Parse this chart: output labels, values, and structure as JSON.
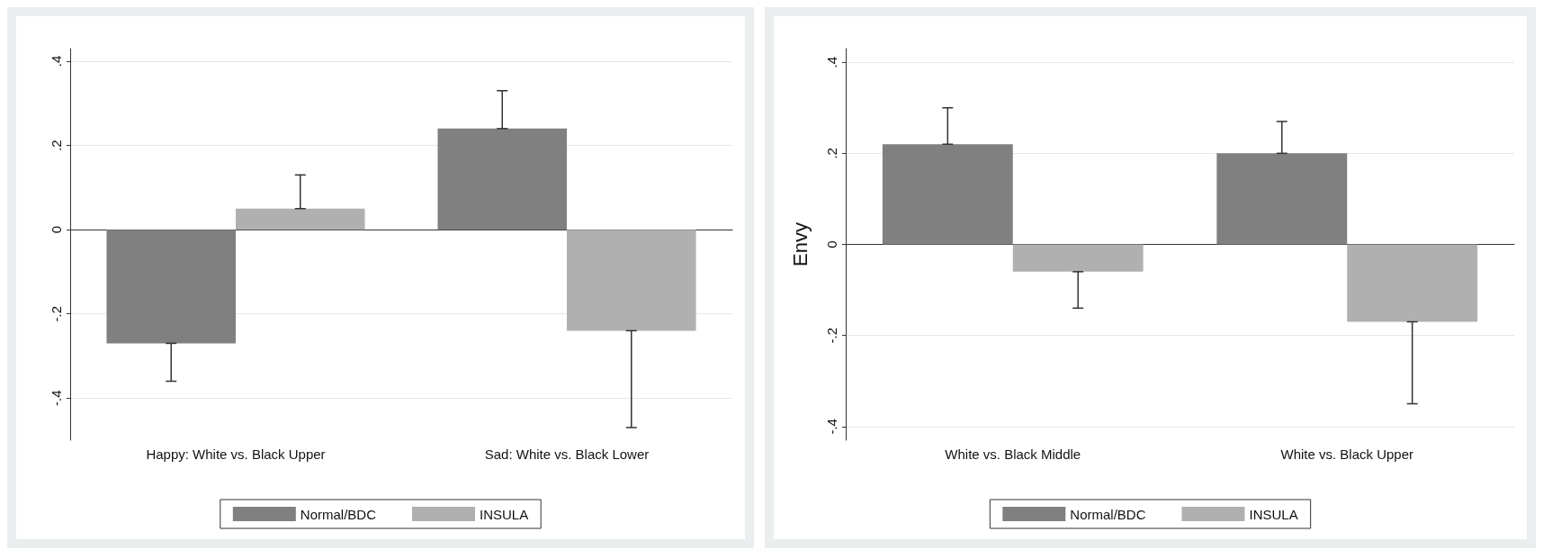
{
  "chart_data": [
    {
      "type": "bar",
      "categories": [
        "Happy: White vs. Black Upper",
        "Sad: White vs. Black Lower"
      ],
      "series": [
        {
          "name": "Normal/BDC",
          "color": "#808080",
          "values": [
            -0.27,
            0.24
          ],
          "errors": [
            [
              -0.36,
              -0.27
            ],
            [
              0.24,
              0.33
            ]
          ]
        },
        {
          "name": "INSULA",
          "color": "#b0b0b0",
          "values": [
            0.05,
            -0.24
          ],
          "errors": [
            [
              0.05,
              0.13
            ],
            [
              -0.47,
              -0.24
            ]
          ]
        }
      ],
      "ylim": [
        -0.5,
        0.43
      ],
      "yticks": [
        {
          "value": -0.4,
          "label": "-.4"
        },
        {
          "value": -0.2,
          "label": "-.2"
        },
        0,
        {
          "value": 0.2,
          "label": ".2"
        },
        {
          "value": 0.4,
          "label": ".4"
        }
      ],
      "grid": "y",
      "legend": "bottom"
    },
    {
      "type": "bar",
      "ylabel": "Envy",
      "categories": [
        "White vs. Black Middle",
        "White vs. Black Upper"
      ],
      "series": [
        {
          "name": "Normal/BDC",
          "color": "#808080",
          "values": [
            0.22,
            0.2
          ],
          "errors": [
            [
              0.22,
              0.3
            ],
            [
              0.2,
              0.27
            ]
          ]
        },
        {
          "name": "INSULA",
          "color": "#b0b0b0",
          "values": [
            -0.06,
            -0.17
          ],
          "errors": [
            [
              -0.14,
              -0.06
            ],
            [
              -0.35,
              -0.17
            ]
          ]
        }
      ],
      "ylim": [
        -0.43,
        0.43
      ],
      "yticks": [
        {
          "value": -0.4,
          "label": "-.4"
        },
        {
          "value": -0.2,
          "label": "-.2"
        },
        0,
        {
          "value": 0.2,
          "label": ".2"
        },
        {
          "value": 0.4,
          "label": ".4"
        }
      ],
      "grid": "y",
      "legend": "bottom"
    }
  ]
}
